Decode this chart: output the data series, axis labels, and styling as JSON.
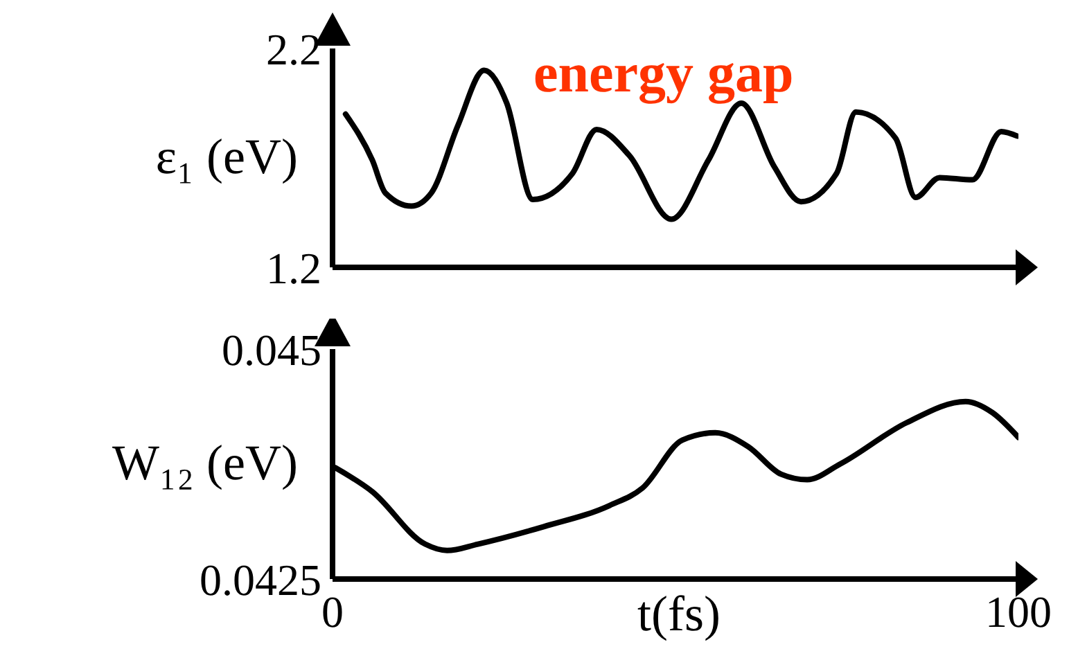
{
  "chart_data": [
    {
      "type": "line",
      "title": "energy gap",
      "ylabel": "ε₁ (eV)",
      "xlim": [
        0,
        100
      ],
      "ylim": [
        1.2,
        2.2
      ],
      "yticks": [
        1.2,
        2.2
      ],
      "tick_labels": "y",
      "color": "#000000",
      "x": [
        1.9,
        5.8,
        7.7,
        11.5,
        14.4,
        18.3,
        22.1,
        25.4,
        29.2,
        35,
        38.5,
        43.3,
        49.4,
        54.8,
        59.6,
        64.4,
        68.3,
        73.5,
        76.3,
        82.1,
        85,
        88.5,
        93.3,
        97.5,
        99.8
      ],
      "values": [
        1.9,
        1.69,
        1.54,
        1.48,
        1.54,
        1.85,
        2.1,
        1.95,
        1.51,
        1.63,
        1.83,
        1.71,
        1.42,
        1.69,
        1.95,
        1.66,
        1.5,
        1.63,
        1.91,
        1.79,
        1.52,
        1.61,
        1.6,
        1.82,
        1.8
      ]
    },
    {
      "type": "line",
      "ylabel": "W₁₂ (eV)",
      "xlabel": "t(fs)",
      "xlim": [
        0,
        100
      ],
      "xticks": [
        0,
        100
      ],
      "ylim": [
        0.0425,
        0.045
      ],
      "yticks": [
        0.0425,
        0.045
      ],
      "color": "#000000",
      "x": [
        0.4,
        5.8,
        13.5,
        16.7,
        21.2,
        30.8,
        40.4,
        45.2,
        51,
        55.8,
        60.6,
        65.4,
        69.2,
        74,
        83.7,
        92.3,
        96.2,
        100
      ],
      "values": [
        0.04371,
        0.04345,
        0.04288,
        0.04281,
        0.04288,
        0.04307,
        0.0433,
        0.04349,
        0.04401,
        0.04409,
        0.04394,
        0.04364,
        0.04358,
        0.04375,
        0.0442,
        0.04443,
        0.04431,
        0.04404
      ]
    }
  ]
}
